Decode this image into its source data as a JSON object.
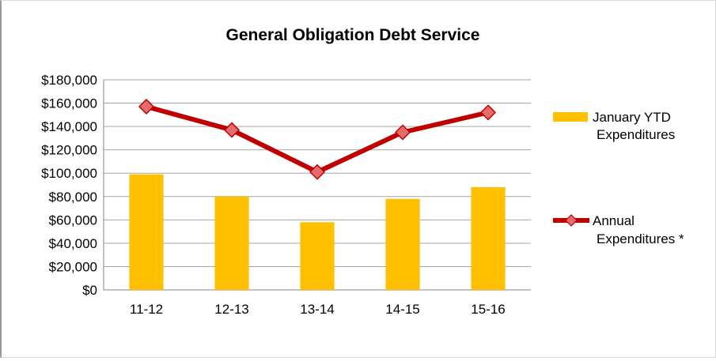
{
  "chart_data": {
    "type": "bar",
    "title": "General Obligation Debt Service",
    "categories": [
      "11-12",
      "12-13",
      "13-14",
      "14-15",
      "15-16"
    ],
    "series": [
      {
        "name": "January YTD Expenditures",
        "legend_lines": [
          "January YTD",
          "Expenditures"
        ],
        "type": "bar",
        "color": "#FFC000",
        "values": [
          99000,
          80000,
          58000,
          78000,
          88000
        ]
      },
      {
        "name": "Annual Expenditures *",
        "legend_lines": [
          "Annual",
          "Expenditures *"
        ],
        "type": "line",
        "color": "#C00000",
        "marker_color": "#E46C6C",
        "values": [
          157000,
          137000,
          101000,
          135000,
          152000
        ]
      }
    ],
    "ylim": [
      0,
      180000
    ],
    "yticks": [
      0,
      20000,
      40000,
      60000,
      80000,
      100000,
      120000,
      140000,
      160000,
      180000
    ],
    "ytick_labels": [
      "$0",
      "$20,000",
      "$40,000",
      "$60,000",
      "$80,000",
      "$100,000",
      "$120,000",
      "$140,000",
      "$160,000",
      "$180,000"
    ],
    "grid": true,
    "legend_position": "right"
  }
}
